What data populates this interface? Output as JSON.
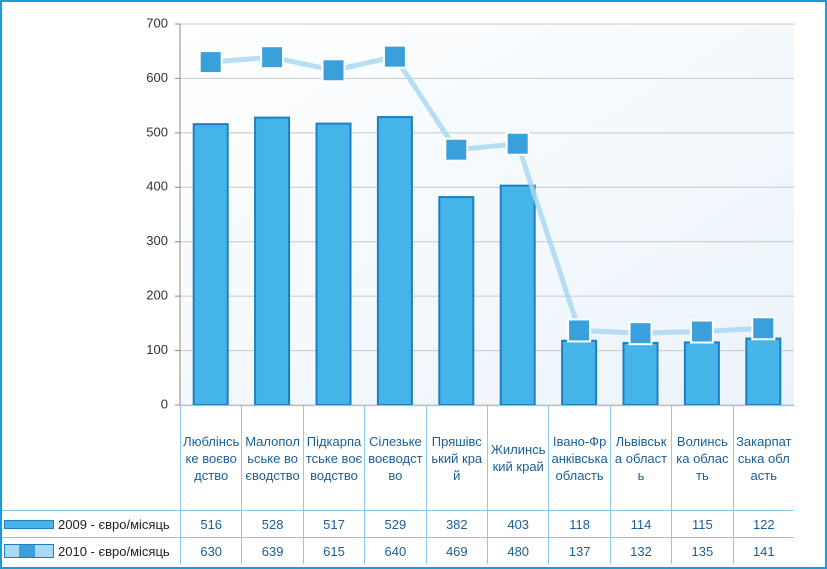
{
  "chart_data": {
    "type": "bar",
    "categories": [
      "Люблінське воєводство",
      "Малопольське воєводство",
      "Підкарпатське воєводство",
      "Сілезьке воєводство",
      "Пряшівський край",
      "Жилинський край",
      "Івано-Франківська область",
      "Львівська область",
      "Волинська область",
      "Закарпатська область"
    ],
    "series": [
      {
        "name": "2009 - євро/місяць",
        "color": "#45b4e8",
        "values": [
          516,
          528,
          517,
          529,
          382,
          403,
          118,
          114,
          115,
          122
        ]
      },
      {
        "name": "2010 - євро/місяць",
        "color": "#3aa0dc",
        "type": "line",
        "values": [
          630,
          639,
          615,
          640,
          469,
          480,
          137,
          132,
          135,
          141
        ]
      }
    ],
    "ylim": [
      0,
      700
    ],
    "yticks": [
      0,
      100,
      200,
      300,
      400,
      500,
      600,
      700
    ],
    "grid": true
  }
}
